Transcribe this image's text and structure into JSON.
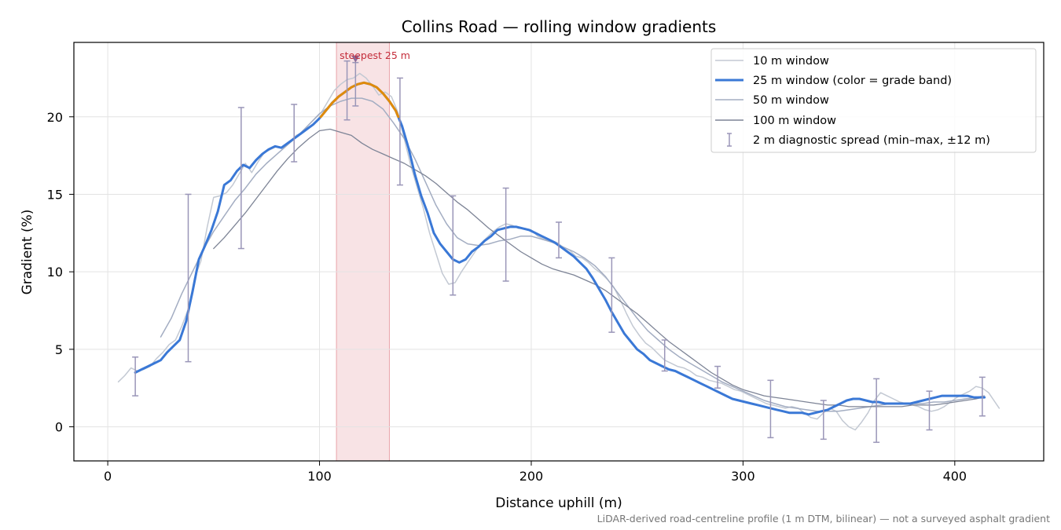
{
  "chart_data": {
    "type": "line",
    "title": "Collins Road — rolling window gradients",
    "xlabel": "Distance uphill (m)",
    "ylabel": "Gradient (%)",
    "xlim": [
      -16,
      442
    ],
    "ylim": [
      -2.2,
      24.8
    ],
    "xticks": [
      0,
      100,
      200,
      300,
      400
    ],
    "yticks": [
      0,
      5,
      10,
      15,
      20
    ],
    "grid": true,
    "legend_position": "upper right",
    "colors": {
      "w10": "#c3c9d3",
      "w25": "#3a78d6",
      "w25_steep": "#e08b0a",
      "w50": "#a3adc2",
      "w100": "#7d8496",
      "errorbar": "#9a96b8",
      "highlight": "#e9a3aa",
      "annotation": "#c42c3a"
    },
    "highlight_band": {
      "x": [
        108,
        133
      ]
    },
    "steep_threshold": 20,
    "annotation": {
      "text": "steepest 25 m",
      "x": 117,
      "y": 23.7
    },
    "footnote": "LiDAR-derived road-centreline profile (1 m DTM, bilinear) — not a surveyed asphalt gradient",
    "series": [
      {
        "key": "w10",
        "name": "10 m window",
        "x": [
          5,
          8,
          11,
          14,
          17,
          20,
          23,
          26,
          29,
          32,
          35,
          38,
          41,
          44,
          47,
          50,
          53,
          56,
          59,
          62,
          65,
          68,
          71,
          74,
          77,
          80,
          83,
          86,
          89,
          92,
          95,
          98,
          101,
          104,
          107,
          110,
          113,
          116,
          119,
          122,
          125,
          128,
          131,
          134,
          137,
          140,
          143,
          146,
          149,
          152,
          155,
          158,
          161,
          164,
          167,
          170,
          173,
          176,
          179,
          182,
          185,
          188,
          191,
          194,
          197,
          200,
          203,
          206,
          209,
          212,
          215,
          218,
          221,
          224,
          227,
          230,
          233,
          236,
          239,
          242,
          245,
          248,
          251,
          254,
          257,
          260,
          263,
          266,
          269,
          272,
          275,
          278,
          281,
          284,
          287,
          290,
          293,
          296,
          299,
          302,
          305,
          308,
          311,
          314,
          317,
          320,
          323,
          326,
          329,
          332,
          335,
          338,
          341,
          344,
          347,
          350,
          353,
          356,
          359,
          362,
          365,
          368,
          371,
          374,
          377,
          380,
          383,
          386,
          389,
          392,
          395,
          398,
          401,
          404,
          407,
          410,
          413,
          416,
          419,
          421
        ],
        "values": [
          2.9,
          3.3,
          3.8,
          3.6,
          3.7,
          3.9,
          4.4,
          4.8,
          5.3,
          5.6,
          6.5,
          7.6,
          9.6,
          10.7,
          12.9,
          14.8,
          14.9,
          15.1,
          15.6,
          16.3,
          17.0,
          16.4,
          17.1,
          17.7,
          17.9,
          18.1,
          18.0,
          18.4,
          18.8,
          19.0,
          19.5,
          19.9,
          20.3,
          21.0,
          21.7,
          22.1,
          22.4,
          22.5,
          22.8,
          22.5,
          22.0,
          21.4,
          21.6,
          21.3,
          20.3,
          18.6,
          16.9,
          15.5,
          14.1,
          12.5,
          11.2,
          9.9,
          9.2,
          9.3,
          10.0,
          10.6,
          11.2,
          11.8,
          12.2,
          12.6,
          12.9,
          13.1,
          13.0,
          12.8,
          12.8,
          12.7,
          12.3,
          12.1,
          12.0,
          11.9,
          11.6,
          11.4,
          11.0,
          10.9,
          10.6,
          10.2,
          9.9,
          9.5,
          9.0,
          8.2,
          7.3,
          6.5,
          5.9,
          5.4,
          5.1,
          4.7,
          4.3,
          4.1,
          3.9,
          3.8,
          3.6,
          3.3,
          3.2,
          3.0,
          2.9,
          2.8,
          2.6,
          2.4,
          2.3,
          2.1,
          1.9,
          1.7,
          1.5,
          1.4,
          1.3,
          1.2,
          1.3,
          1.2,
          0.9,
          0.6,
          0.5,
          0.9,
          1.2,
          1.0,
          0.4,
          0.0,
          -0.2,
          0.3,
          0.9,
          1.7,
          2.2,
          2.0,
          1.8,
          1.6,
          1.5,
          1.4,
          1.3,
          1.1,
          1.0,
          1.1,
          1.3,
          1.6,
          1.9,
          2.1,
          2.3,
          2.6,
          2.5,
          2.2,
          1.6,
          1.2
        ]
      },
      {
        "key": "w25",
        "name": "25 m window (color = grade band)",
        "x": [
          13,
          16,
          19,
          22,
          25,
          28,
          31,
          34,
          37,
          40,
          43,
          46,
          49,
          52,
          55,
          58,
          61,
          64,
          67,
          70,
          73,
          76,
          79,
          82,
          85,
          88,
          91,
          94,
          97,
          100,
          103,
          106,
          109,
          112,
          115,
          118,
          121,
          124,
          127,
          130,
          133,
          136,
          139,
          142,
          145,
          148,
          151,
          154,
          157,
          160,
          163,
          166,
          169,
          172,
          175,
          178,
          181,
          184,
          187,
          190,
          193,
          196,
          199,
          202,
          205,
          208,
          211,
          214,
          217,
          220,
          223,
          226,
          229,
          232,
          235,
          238,
          241,
          244,
          247,
          250,
          253,
          256,
          259,
          262,
          265,
          268,
          271,
          274,
          277,
          280,
          283,
          286,
          289,
          292,
          295,
          298,
          301,
          304,
          307,
          310,
          313,
          316,
          319,
          322,
          325,
          328,
          331,
          334,
          337,
          340,
          343,
          346,
          349,
          352,
          355,
          358,
          361,
          364,
          367,
          370,
          373,
          376,
          379,
          382,
          385,
          388,
          391,
          394,
          397,
          400,
          403,
          406,
          409,
          412,
          414
        ],
        "values": [
          3.5,
          3.7,
          3.9,
          4.1,
          4.3,
          4.8,
          5.2,
          5.6,
          6.8,
          8.7,
          10.8,
          11.7,
          12.7,
          13.9,
          15.6,
          15.9,
          16.5,
          16.9,
          16.7,
          17.2,
          17.6,
          17.9,
          18.1,
          18.0,
          18.3,
          18.6,
          18.9,
          19.2,
          19.5,
          19.9,
          20.4,
          20.9,
          21.3,
          21.6,
          21.9,
          22.1,
          22.2,
          22.1,
          21.9,
          21.5,
          21.0,
          20.4,
          19.4,
          18.0,
          16.3,
          14.9,
          13.8,
          12.5,
          11.8,
          11.3,
          10.8,
          10.6,
          10.8,
          11.3,
          11.6,
          12.0,
          12.3,
          12.7,
          12.8,
          12.9,
          12.9,
          12.8,
          12.7,
          12.5,
          12.3,
          12.1,
          11.9,
          11.6,
          11.3,
          11.0,
          10.6,
          10.2,
          9.6,
          8.9,
          8.2,
          7.4,
          6.7,
          6.0,
          5.5,
          5.0,
          4.7,
          4.3,
          4.1,
          3.9,
          3.7,
          3.6,
          3.4,
          3.2,
          3.0,
          2.8,
          2.6,
          2.4,
          2.2,
          2.0,
          1.8,
          1.7,
          1.6,
          1.5,
          1.4,
          1.3,
          1.2,
          1.1,
          1.0,
          0.9,
          0.9,
          0.9,
          0.8,
          0.9,
          1.0,
          1.1,
          1.3,
          1.5,
          1.7,
          1.8,
          1.8,
          1.7,
          1.6,
          1.6,
          1.5,
          1.5,
          1.5,
          1.5,
          1.5,
          1.6,
          1.7,
          1.8,
          1.9,
          2.0,
          2.0,
          2.0,
          2.0,
          2.0,
          1.9,
          1.9,
          1.9
        ]
      },
      {
        "key": "w50",
        "name": "50 m window",
        "x": [
          25,
          30,
          35,
          40,
          45,
          50,
          55,
          60,
          65,
          70,
          75,
          80,
          85,
          90,
          95,
          100,
          105,
          110,
          115,
          120,
          125,
          130,
          135,
          140,
          145,
          150,
          155,
          160,
          165,
          170,
          175,
          180,
          185,
          190,
          195,
          200,
          205,
          210,
          215,
          220,
          225,
          230,
          235,
          240,
          245,
          250,
          255,
          260,
          265,
          270,
          275,
          280,
          285,
          290,
          295,
          300,
          305,
          310,
          315,
          320,
          325,
          330,
          335,
          340,
          345,
          350,
          355,
          360,
          365,
          370,
          375,
          380,
          385,
          390,
          395,
          400,
          405,
          410,
          414
        ],
        "values": [
          5.8,
          7.0,
          8.6,
          10.0,
          11.4,
          12.6,
          13.6,
          14.6,
          15.4,
          16.3,
          17.0,
          17.6,
          18.2,
          18.8,
          19.5,
          20.2,
          20.7,
          21.0,
          21.2,
          21.2,
          21.0,
          20.5,
          19.6,
          18.6,
          17.3,
          15.8,
          14.3,
          13.1,
          12.2,
          11.8,
          11.7,
          11.8,
          12.0,
          12.1,
          12.3,
          12.3,
          12.1,
          11.9,
          11.6,
          11.3,
          10.9,
          10.4,
          9.7,
          8.8,
          7.9,
          7.0,
          6.2,
          5.6,
          5.0,
          4.5,
          4.1,
          3.7,
          3.3,
          2.9,
          2.6,
          2.3,
          2.0,
          1.7,
          1.5,
          1.3,
          1.2,
          1.1,
          1.0,
          1.0,
          1.0,
          1.1,
          1.2,
          1.3,
          1.4,
          1.5,
          1.5,
          1.5,
          1.5,
          1.6,
          1.6,
          1.7,
          1.8,
          1.9,
          2.0
        ]
      },
      {
        "key": "w100",
        "name": "100 m window",
        "x": [
          50,
          55,
          60,
          65,
          70,
          75,
          80,
          85,
          90,
          95,
          100,
          105,
          110,
          115,
          120,
          125,
          130,
          135,
          140,
          145,
          150,
          155,
          160,
          165,
          170,
          175,
          180,
          185,
          190,
          195,
          200,
          205,
          210,
          215,
          220,
          225,
          230,
          235,
          240,
          245,
          250,
          255,
          260,
          265,
          270,
          275,
          280,
          285,
          290,
          295,
          300,
          305,
          310,
          315,
          320,
          325,
          330,
          335,
          340,
          345,
          350,
          355,
          360,
          365,
          370,
          375,
          380,
          385,
          390,
          395,
          400,
          405,
          410,
          413
        ],
        "values": [
          11.5,
          12.2,
          13.0,
          13.8,
          14.7,
          15.6,
          16.5,
          17.3,
          18.0,
          18.6,
          19.1,
          19.2,
          19.0,
          18.8,
          18.3,
          17.9,
          17.6,
          17.3,
          17.0,
          16.6,
          16.2,
          15.7,
          15.1,
          14.5,
          14.0,
          13.4,
          12.8,
          12.3,
          11.8,
          11.3,
          10.9,
          10.5,
          10.2,
          10.0,
          9.8,
          9.5,
          9.2,
          8.8,
          8.3,
          7.8,
          7.3,
          6.7,
          6.1,
          5.5,
          5.0,
          4.5,
          4.0,
          3.5,
          3.1,
          2.7,
          2.4,
          2.2,
          2.0,
          1.9,
          1.8,
          1.7,
          1.6,
          1.5,
          1.4,
          1.4,
          1.3,
          1.3,
          1.3,
          1.3,
          1.3,
          1.3,
          1.4,
          1.4,
          1.4,
          1.5,
          1.6,
          1.7,
          1.8,
          1.9
        ]
      }
    ],
    "errorbars": {
      "name": "2 m diagnostic spread (min–max, ±12 m)",
      "points": [
        {
          "x": 13,
          "ymin": 2.0,
          "ymax": 4.5
        },
        {
          "x": 38,
          "ymin": 4.2,
          "ymax": 15.0
        },
        {
          "x": 63,
          "ymin": 11.5,
          "ymax": 20.6
        },
        {
          "x": 88,
          "ymin": 17.1,
          "ymax": 20.8
        },
        {
          "x": 113,
          "ymin": 19.8,
          "ymax": 23.6
        },
        {
          "x": 117,
          "ymin": 20.7,
          "ymax": 23.5
        },
        {
          "x": 138,
          "ymin": 15.6,
          "ymax": 22.5
        },
        {
          "x": 163,
          "ymin": 8.5,
          "ymax": 14.9
        },
        {
          "x": 188,
          "ymin": 9.4,
          "ymax": 15.4
        },
        {
          "x": 213,
          "ymin": 10.9,
          "ymax": 13.2
        },
        {
          "x": 238,
          "ymin": 6.1,
          "ymax": 10.9
        },
        {
          "x": 263,
          "ymin": 3.6,
          "ymax": 5.6
        },
        {
          "x": 288,
          "ymin": 2.5,
          "ymax": 3.9
        },
        {
          "x": 313,
          "ymin": -0.7,
          "ymax": 3.0
        },
        {
          "x": 338,
          "ymin": -0.8,
          "ymax": 1.7
        },
        {
          "x": 363,
          "ymin": -1.0,
          "ymax": 3.1
        },
        {
          "x": 388,
          "ymin": -0.2,
          "ymax": 2.3
        },
        {
          "x": 413,
          "ymin": 0.7,
          "ymax": 3.2
        }
      ]
    }
  }
}
